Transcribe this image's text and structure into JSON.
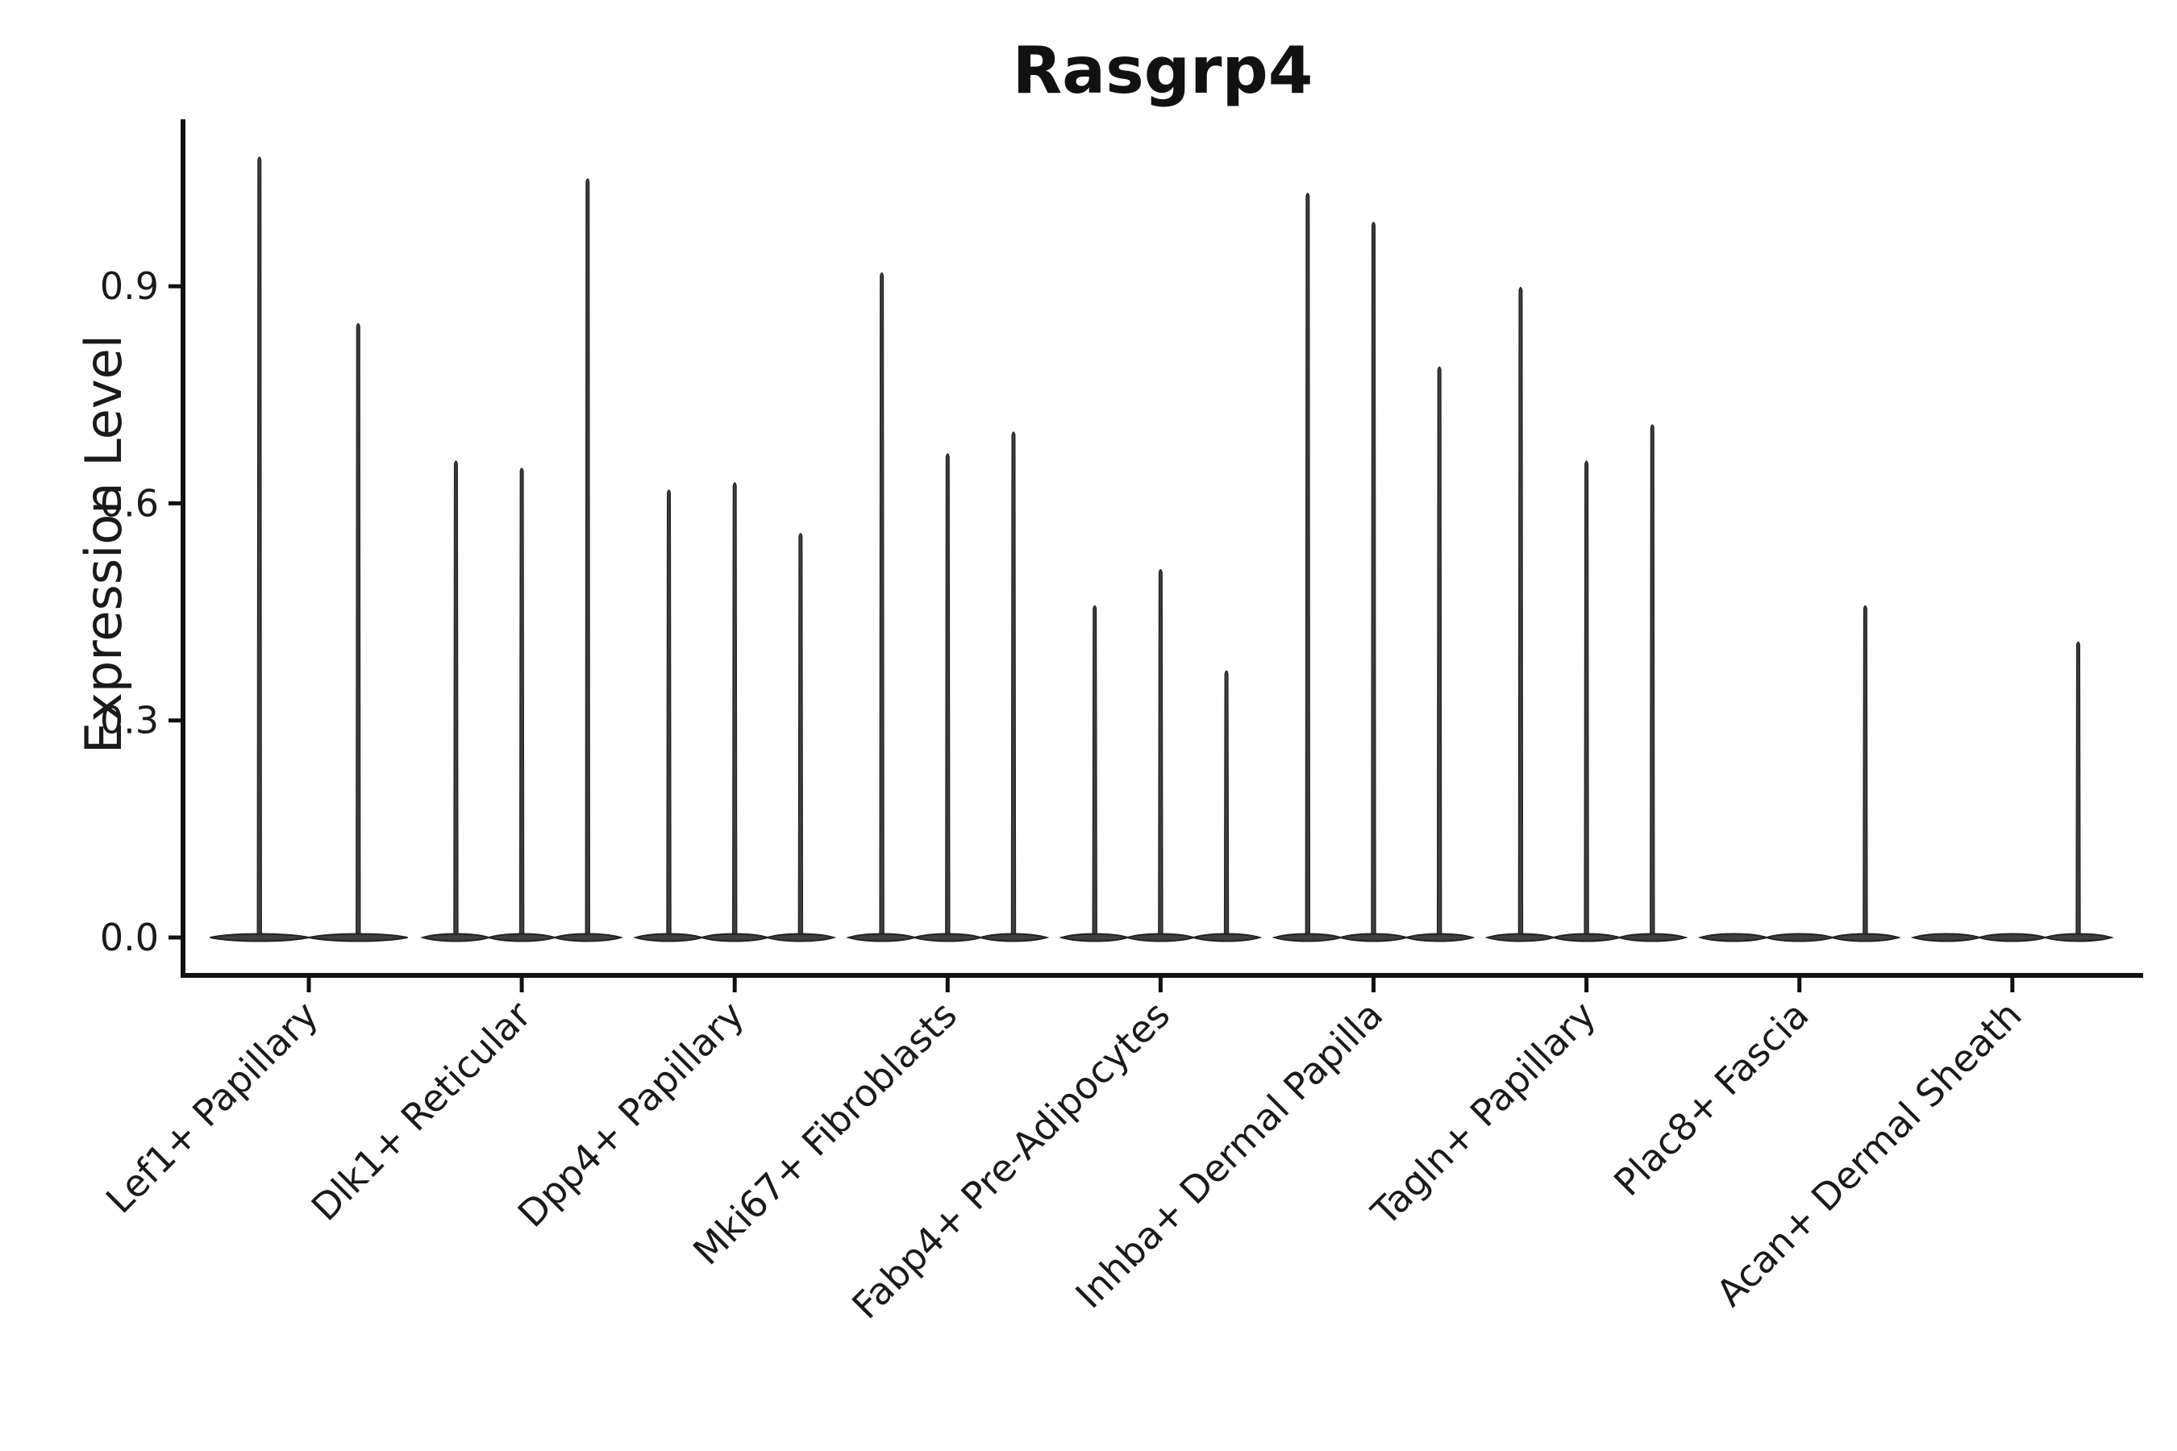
{
  "chart_data": {
    "type": "violin",
    "title": "Rasgrp4",
    "ylabel": "Expression Level",
    "xlabel": "",
    "ylim": [
      -0.052,
      1.128
    ],
    "yticks": [
      0.0,
      0.3,
      0.6,
      0.9
    ],
    "ytick_labels": [
      "0.0",
      "0.3",
      "0.6",
      "0.9"
    ],
    "x_tick_rotation_deg": 45,
    "grid": false,
    "legend": "none",
    "violin_style": "needle violins: nearly all density is a flat lens at 0 with a thin vertical spike reaching the maximum expression value",
    "categories": [
      "Lef1+ Papillary",
      "Dlk1+ Reticular",
      "Dpp4+ Papillary",
      "Mki67+ Fibroblasts",
      "Fabp4+ Pre-Adipocytes",
      "Inhba+ Dermal Papilla",
      "Tagln+ Papillary",
      "Plac8+ Fascia",
      "Acan+ Dermal Sheath"
    ],
    "groups": [
      {
        "category": "Lef1+ Papillary",
        "violin_max_values": [
          1.08,
          0.85
        ]
      },
      {
        "category": "Dlk1+ Reticular",
        "violin_max_values": [
          0.66,
          0.65,
          1.05
        ]
      },
      {
        "category": "Dpp4+ Papillary",
        "violin_max_values": [
          0.62,
          0.63,
          0.56
        ]
      },
      {
        "category": "Mki67+ Fibroblasts",
        "violin_max_values": [
          0.92,
          0.67,
          0.7
        ]
      },
      {
        "category": "Fabp4+ Pre-Adipocytes",
        "violin_max_values": [
          0.46,
          0.51,
          0.37
        ]
      },
      {
        "category": "Inhba+ Dermal Papilla",
        "violin_max_values": [
          1.03,
          0.99,
          0.79
        ]
      },
      {
        "category": "Tagln+ Papillary",
        "violin_max_values": [
          0.9,
          0.66,
          0.71
        ]
      },
      {
        "category": "Plac8+ Fascia",
        "violin_max_values": [
          0.0,
          0.0,
          0.46
        ]
      },
      {
        "category": "Acan+ Dermal Sheath",
        "violin_max_values": [
          0.0,
          0.0,
          0.41
        ]
      }
    ],
    "colors": {
      "violin_fill": "#3f3f3f",
      "violin_stroke": "#222222",
      "axis": "#111111",
      "text": "#1a1a1a",
      "background": "#ffffff"
    }
  }
}
